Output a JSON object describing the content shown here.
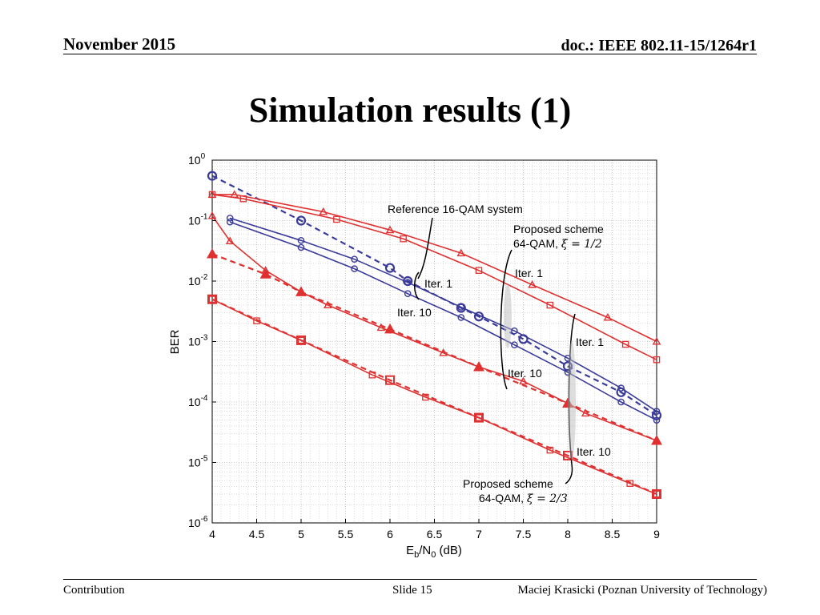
{
  "header": {
    "date": "November 2015",
    "doc": "doc.: IEEE 802.11-15/1264r1"
  },
  "slide_title": "Simulation results (1)",
  "footer": {
    "left": "Contribution",
    "center": "Slide 15",
    "right": "Maciej Krasicki (Poznan University of Technology)"
  },
  "chart_data": {
    "type": "line",
    "title": "",
    "xlabel": "E_b/N_0 (dB)",
    "xlabel_parts": {
      "main": "E",
      "sub1": "b",
      "mid": "/N",
      "sub2": "0",
      "tail": " (dB)"
    },
    "ylabel": "BER",
    "xlim": [
      4,
      9
    ],
    "ylim": [
      1e-06,
      1
    ],
    "yscale": "log",
    "grid": true,
    "x_ticks": [
      "4",
      "4.5",
      "5",
      "5.5",
      "6",
      "6.5",
      "7",
      "7.5",
      "8",
      "8.5",
      "9"
    ],
    "y_ticks": [
      {
        "base": "10",
        "exp": "0"
      },
      {
        "base": "10",
        "exp": "-1"
      },
      {
        "base": "10",
        "exp": "-2"
      },
      {
        "base": "10",
        "exp": "-3"
      },
      {
        "base": "10",
        "exp": "-4"
      },
      {
        "base": "10",
        "exp": "-5"
      },
      {
        "base": "10",
        "exp": "-6"
      }
    ],
    "colors": {
      "red": "#e03030",
      "blue": "#3a3a9a"
    },
    "series": [
      {
        "color": "#3a3a9a",
        "dash": true,
        "marker": "circle-big",
        "points": [
          [
            4,
            0.55
          ],
          [
            5,
            0.1
          ],
          [
            6,
            0.0165
          ],
          [
            6.2,
            0.01
          ],
          [
            6.8,
            0.0036
          ],
          [
            7,
            0.0026
          ],
          [
            7.5,
            0.0011
          ],
          [
            8,
            0.00039
          ],
          [
            8.6,
            0.000145
          ],
          [
            9,
            6e-05
          ]
        ]
      },
      {
        "color": "#3a3a9a",
        "dash": false,
        "marker": "circle",
        "points": [
          [
            4.2,
            0.11
          ],
          [
            5,
            0.047
          ],
          [
            5.6,
            0.023
          ],
          [
            6.2,
            0.0095
          ],
          [
            6.8,
            0.0037
          ],
          [
            7.4,
            0.0015
          ],
          [
            8,
            0.00053
          ],
          [
            8.6,
            0.00017
          ],
          [
            9,
            7e-05
          ]
        ]
      },
      {
        "color": "#3a3a9a",
        "dash": false,
        "marker": "circle",
        "points": [
          [
            4.2,
            0.095
          ],
          [
            5,
            0.036
          ],
          [
            5.6,
            0.016
          ],
          [
            6.2,
            0.0062
          ],
          [
            6.8,
            0.0025
          ],
          [
            7.4,
            0.00088
          ],
          [
            8,
            0.00031
          ],
          [
            8.6,
            0.0001
          ],
          [
            9,
            5e-05
          ]
        ]
      },
      {
        "color": "#e03030",
        "dash": false,
        "marker": "triangle",
        "points": [
          [
            4,
            0.27
          ],
          [
            4.25,
            0.27
          ],
          [
            5.25,
            0.14
          ],
          [
            6,
            0.07
          ],
          [
            6.8,
            0.029
          ],
          [
            7.6,
            0.0087
          ],
          [
            8.45,
            0.0025
          ],
          [
            9,
            0.001
          ]
        ]
      },
      {
        "color": "#e03030",
        "dash": false,
        "marker": "square",
        "points": [
          [
            4,
            0.27
          ],
          [
            4.35,
            0.23
          ],
          [
            5.4,
            0.105
          ],
          [
            6.15,
            0.05
          ],
          [
            7,
            0.015
          ],
          [
            7.8,
            0.004
          ],
          [
            8.65,
            0.0009
          ],
          [
            9,
            0.0005
          ]
        ]
      },
      {
        "color": "#e03030",
        "dash": false,
        "marker": "triangle",
        "points": [
          [
            4,
            0.12
          ],
          [
            4.2,
            0.046
          ],
          [
            4.6,
            0.015
          ],
          [
            5,
            0.0066
          ],
          [
            5.3,
            0.004
          ],
          [
            5.9,
            0.0017
          ],
          [
            6.6,
            0.00065
          ],
          [
            7,
            0.00038
          ],
          [
            7.5,
            0.00022
          ],
          [
            8,
            9.5e-05
          ],
          [
            8.2,
            6.5e-05
          ],
          [
            9,
            2.3e-05
          ]
        ]
      },
      {
        "color": "#e03030",
        "dash": true,
        "marker": "triangle-big",
        "points": [
          [
            4,
            0.028
          ],
          [
            4.6,
            0.013
          ],
          [
            5,
            0.0066
          ],
          [
            6,
            0.0016
          ],
          [
            7,
            0.00038
          ],
          [
            8,
            9.5e-05
          ],
          [
            9,
            2.3e-05
          ]
        ]
      },
      {
        "color": "#e03030",
        "dash": false,
        "marker": "square",
        "points": [
          [
            4,
            0.005
          ],
          [
            4.5,
            0.0022
          ],
          [
            5,
            0.00105
          ],
          [
            5.8,
            0.00028
          ],
          [
            6.4,
            0.00012
          ],
          [
            7,
            5.5e-05
          ],
          [
            7.8,
            1.6e-05
          ],
          [
            8.7,
            4.5e-06
          ],
          [
            9,
            3e-06
          ]
        ]
      },
      {
        "color": "#e03030",
        "dash": true,
        "marker": "square-big",
        "points": [
          [
            4,
            0.005
          ],
          [
            5,
            0.00105
          ],
          [
            6,
            0.00023
          ],
          [
            7,
            5.5e-05
          ],
          [
            8,
            1.3e-05
          ],
          [
            9,
            3e-06
          ]
        ]
      }
    ],
    "annotations": {
      "ref": "Reference 16-QAM system",
      "prop1_line1": "Proposed scheme",
      "prop1_line2": "64-QAM, ",
      "prop1_xi": "ξ = 1/2",
      "iter1_a": "Iter. 1",
      "iter1_b": "Iter. 1",
      "iter1_c": "Iter. 1",
      "iter10_a": "Iter. 10",
      "iter10_b": "Iter. 10",
      "iter10_c": "Iter. 10",
      "prop2_line1": "Proposed scheme",
      "prop2_line2": "64-QAM, ",
      "prop2_xi": "ξ = 2/3"
    }
  }
}
